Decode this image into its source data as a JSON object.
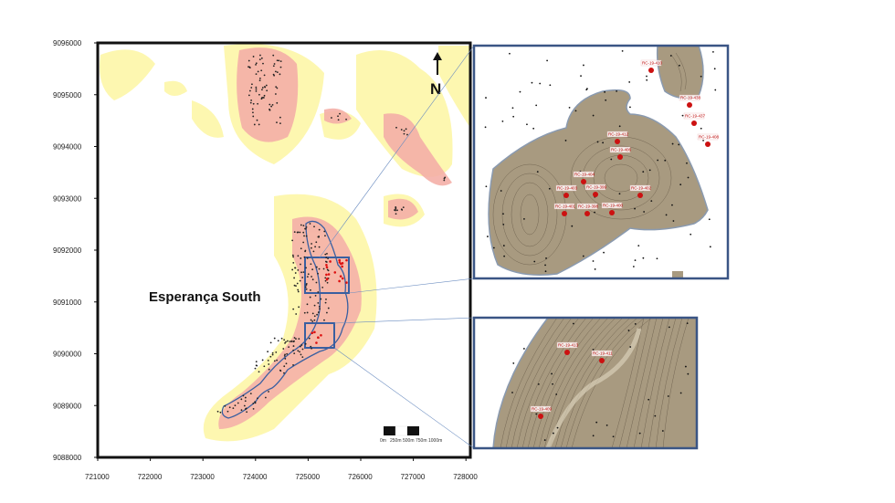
{
  "map": {
    "title": "Esperança South",
    "north_label": "N",
    "y_ticks": [
      "9096000",
      "9095000",
      "9094000",
      "9093000",
      "9092000",
      "9091000",
      "9090000",
      "9089000",
      "9088000"
    ],
    "x_ticks": [
      "721000",
      "722000",
      "723000",
      "724000",
      "725000",
      "726000",
      "727000",
      "728000"
    ],
    "scale_bar": [
      "0m",
      "250m",
      "500m",
      "750m",
      "1000m"
    ],
    "colors": {
      "low": "#fdf7b0",
      "high": "#f5a8a8",
      "orebody": "#a89a80",
      "outline": "#3a5fa0",
      "drill_hole": "#cc1111"
    }
  },
  "upper_inset": {
    "drill_holes": [
      "RC-19-410",
      "RC-19-438",
      "RC-19-437",
      "RC-19-408",
      "RC-19-412",
      "RC-19-406",
      "RC-19-404",
      "RC-19-403",
      "RC-19-399",
      "RC-19-402",
      "RC-19-401",
      "RC-19-398",
      "RC-19-400"
    ]
  },
  "lower_inset": {
    "drill_holes": [
      "RC-19-413",
      "RC-19-411",
      "RC-19-409"
    ]
  }
}
